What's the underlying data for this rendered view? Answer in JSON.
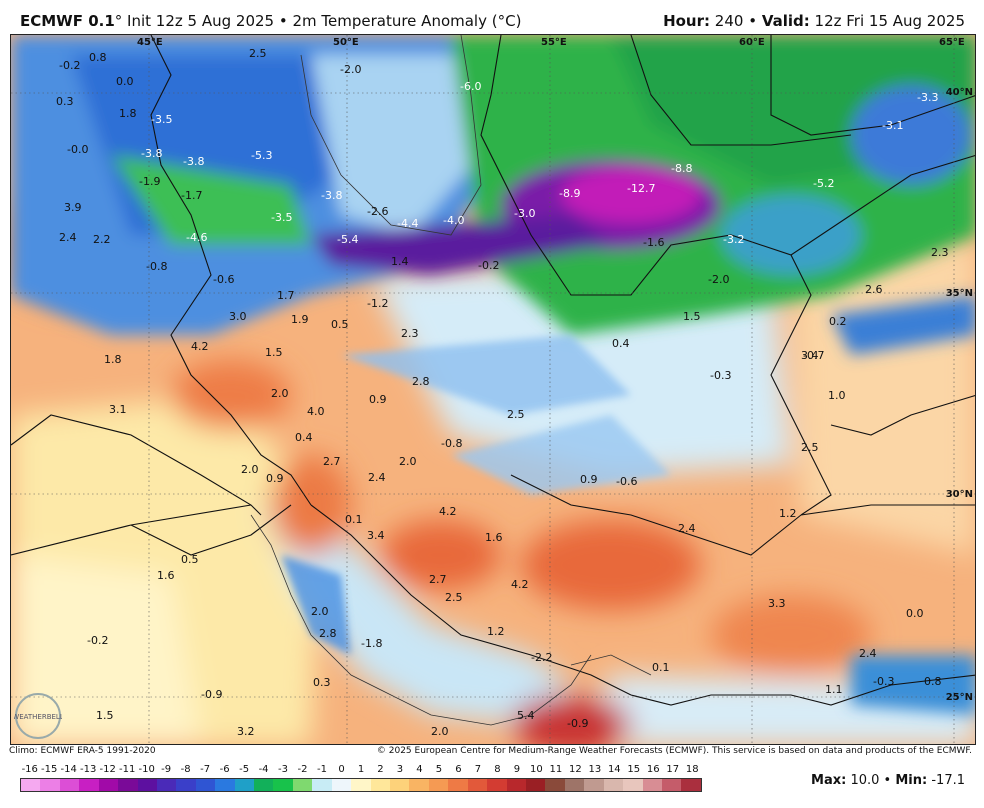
{
  "header": {
    "model": "ECMWF 0.1",
    "deg": "°",
    "init": " Init 12z 5 Aug 2025",
    "bullet": " • ",
    "product": "2m Temperature Anomaly (°C)",
    "hour_label": "Hour:",
    "hour_value": "240",
    "valid_label": "Valid:",
    "valid_value": "12z Fri 15 Aug 2025"
  },
  "map": {
    "lon_labels": [
      "45°E",
      "50°E",
      "55°E",
      "60°E",
      "65°E"
    ],
    "lat_labels": [
      "40°N",
      "35°N",
      "30°N",
      "25°N"
    ],
    "anomaly_labels": [
      "-0.2",
      "0.8",
      "2.5",
      "0.0",
      "0.3",
      "1.8",
      "-3.5",
      "-0.0",
      "-3.8",
      "-3.8",
      "-1.9",
      "-1.7",
      "-5.3",
      "-3.8",
      "-2.6",
      "-4.4",
      "-4.0",
      "-3.0",
      "-8.9",
      "-12.7",
      "-8.8",
      "-5.2",
      "-3.1",
      "-3.3",
      "-6.0",
      "-2.0",
      "3.9",
      "2.4",
      "2.2",
      "-4.6",
      "-3.5",
      "-5.4",
      "1.4",
      "-0.2",
      "-1.6",
      "-3.2",
      "-0.8",
      "-0.6",
      "1.7",
      "3.0",
      "1.9",
      "0.5",
      "-1.2",
      "2.3",
      "-2.0",
      "1.5",
      "0.2",
      "2.6",
      "2.3",
      "-0.7",
      "4.2",
      "1.5",
      "1.8",
      "0.4",
      "-0.3",
      "3.4",
      "2.0",
      "4.0",
      "0.9",
      "2.8",
      "2.5",
      "1.0",
      "3.1",
      "0.4",
      "-0.8",
      "2.5",
      "2.0",
      "2.7",
      "0.9",
      "2.0",
      "2.4",
      "0.9",
      "-0.6",
      "0.1",
      "3.4",
      "4.2",
      "1.6",
      "2.4",
      "1.2",
      "0.5",
      "1.6",
      "2.7",
      "4.2",
      "3.3",
      "0.0",
      "-0.2",
      "2.0",
      "2.5",
      "2.8",
      "1.2",
      "-2.2",
      "2.4",
      "0.3",
      "-1.8",
      "0.1",
      "-0.3",
      "0.8",
      "-0.9",
      "1.5",
      "3.2",
      "2.0",
      "5.4",
      "-0.9",
      "1.1"
    ]
  },
  "footer": {
    "climo": "Climo: ECMWF ERA-5 1991-2020",
    "copyright": "© 2025 European Centre for Medium-Range Weather Forecasts (ECMWF). This service is based on data and products of the ECMWF."
  },
  "colorbar": {
    "ticks": [
      "-16",
      "-15",
      "-14",
      "-13",
      "-12",
      "-11",
      "-10",
      "-9",
      "-8",
      "-7",
      "-6",
      "-5",
      "-4",
      "-3",
      "-2",
      "-1",
      "0",
      "1",
      "2",
      "3",
      "4",
      "5",
      "6",
      "7",
      "8",
      "9",
      "10",
      "11",
      "12",
      "13",
      "14",
      "15",
      "16",
      "17",
      "18"
    ],
    "colors": [
      "#f5a9f0",
      "#ec7fe6",
      "#dc4ed6",
      "#c81fc3",
      "#a10aa8",
      "#7a0a98",
      "#5d10a0",
      "#4a2ab8",
      "#3a3fc9",
      "#2f55d3",
      "#2a79e0",
      "#1fa0c8",
      "#12b05a",
      "#18c24b",
      "#7fd96f",
      "#c8ecf5",
      "#eef6fb",
      "#fff6c8",
      "#ffe79a",
      "#fdd27a",
      "#f9b463",
      "#f59a53",
      "#ee7a45",
      "#e2593a",
      "#d33c32",
      "#b8282c",
      "#9a1f24",
      "#8a4a3a",
      "#9e7468",
      "#c09a90",
      "#d9b7ad",
      "#e8c6bd",
      "#d88d94",
      "#c55c6a",
      "#aa2f3e"
    ],
    "max_label": "Max:",
    "max_value": "10.0",
    "min_label": "Min:",
    "min_value": "-17.1",
    "sep": " • "
  },
  "logo": {
    "text": "WEATHERBELL"
  }
}
